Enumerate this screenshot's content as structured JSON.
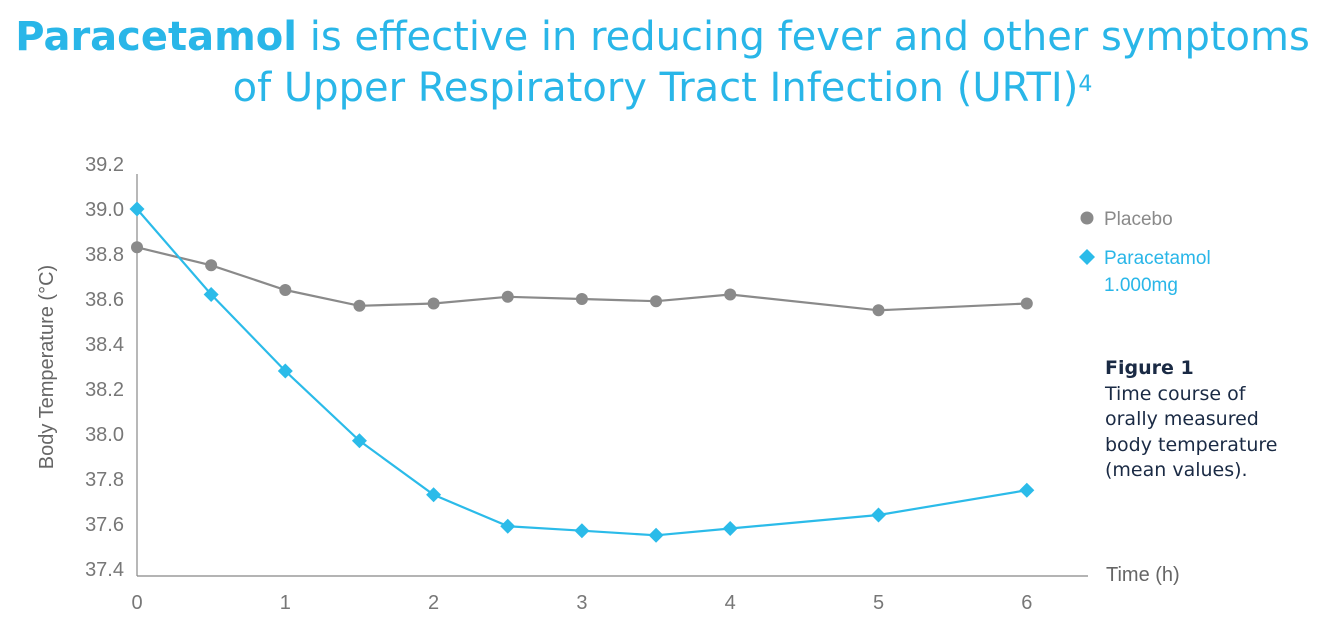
{
  "title": {
    "bold": "Paracetamol",
    "rest": " is effective in reducing fever and other symptoms of Upper Respiratory Tract Infection (URTI)",
    "superscript": "4"
  },
  "caption": {
    "figure": "Figure 1",
    "lines": [
      "Time course of",
      "orally measured",
      "body temperature",
      "(mean values)."
    ]
  },
  "colors": {
    "placebo": "#8a8a8a",
    "paracetamol": "#2bbbe9",
    "title": "#29b6e8",
    "caption": "#1a2a44"
  },
  "chart_data": {
    "type": "line",
    "title": "",
    "xlabel": "Time (h)",
    "ylabel": "Body Temperature (°C)",
    "xlim": [
      0,
      6.4
    ],
    "ylim": [
      37.4,
      39.2
    ],
    "xticks": [
      0,
      1,
      2,
      3,
      4,
      5,
      6
    ],
    "yticks": [
      "37.4",
      "37.6",
      "37.8",
      "38.0",
      "38.2",
      "38.4",
      "38.6",
      "38.8",
      "39.0",
      "39.2"
    ],
    "legend_position": "right",
    "series": [
      {
        "name": "Placebo",
        "marker": "circle",
        "x": [
          0,
          0.5,
          1,
          1.5,
          2,
          2.5,
          3,
          3.5,
          4,
          5,
          6
        ],
        "y": [
          38.83,
          38.75,
          38.64,
          38.57,
          38.58,
          38.61,
          38.6,
          38.59,
          38.62,
          38.55,
          38.58
        ]
      },
      {
        "name": "Paracetamol",
        "name_line2": "1.000mg",
        "marker": "diamond",
        "x": [
          0,
          0.5,
          1,
          1.5,
          2,
          2.5,
          3,
          3.5,
          4,
          5,
          6
        ],
        "y": [
          39.0,
          38.62,
          38.28,
          37.97,
          37.73,
          37.59,
          37.57,
          37.55,
          37.58,
          37.64,
          37.75
        ]
      }
    ]
  }
}
